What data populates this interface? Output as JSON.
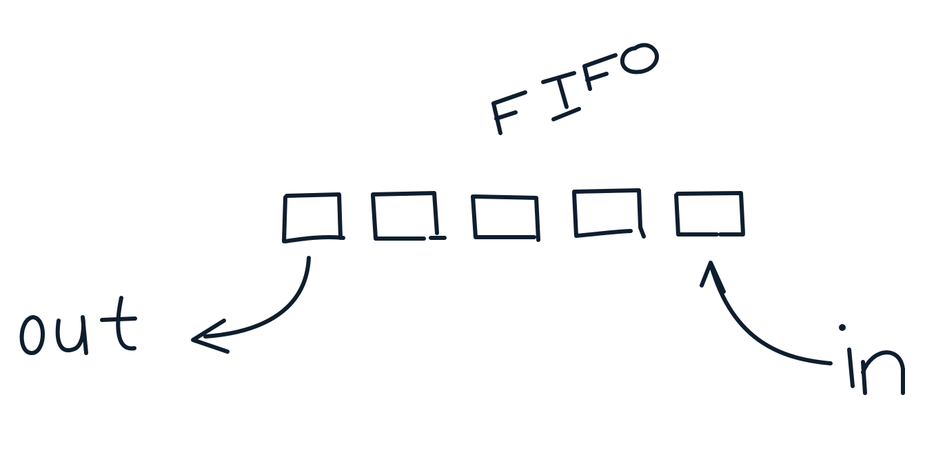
{
  "title": "FIFO",
  "labels": {
    "out": "out",
    "in": "in"
  },
  "queue": {
    "slot_count": 5
  },
  "colors": {
    "ink": "#0f1e2e",
    "background": "#ffffff"
  }
}
